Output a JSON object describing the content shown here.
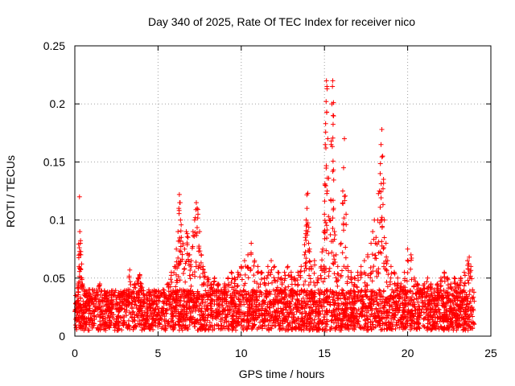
{
  "chart_data": {
    "type": "scatter",
    "title": "Day 340 of 2025, Rate Of TEC Index for receiver nico",
    "xlabel": "GPS time / hours",
    "ylabel": "ROTI / TECUs",
    "xlim": [
      0,
      25
    ],
    "ylim": [
      0,
      0.25
    ],
    "xticks": [
      0,
      5,
      10,
      15,
      20,
      25
    ],
    "xtick_labels": [
      "0",
      "5",
      "10",
      "15",
      "20",
      "25"
    ],
    "yticks": [
      0,
      0.05,
      0.1,
      0.15,
      0.2,
      0.25
    ],
    "ytick_labels": [
      "0",
      "0.05",
      "0.1",
      "0.15",
      "0.2",
      "0.25"
    ],
    "grid": true,
    "marker": "+",
    "series": [
      {
        "name": "ROTI",
        "color": "#ff0000",
        "points": [
          [
            0.05,
            0.035
          ],
          [
            0.1,
            0.025
          ],
          [
            0.15,
            0.03
          ],
          [
            0.2,
            0.045
          ],
          [
            0.25,
            0.06
          ],
          [
            0.28,
            0.12
          ],
          [
            0.3,
            0.09
          ],
          [
            0.33,
            0.08
          ],
          [
            0.36,
            0.07
          ],
          [
            0.4,
            0.05
          ],
          [
            0.45,
            0.045
          ],
          [
            0.5,
            0.03
          ],
          [
            0.6,
            0.025
          ],
          [
            0.7,
            0.03
          ],
          [
            0.8,
            0.035
          ],
          [
            0.9,
            0.04
          ],
          [
            1.0,
            0.03
          ],
          [
            1.2,
            0.025
          ],
          [
            1.5,
            0.045
          ],
          [
            1.8,
            0.03
          ],
          [
            2.0,
            0.025
          ],
          [
            2.3,
            0.03
          ],
          [
            2.6,
            0.035
          ],
          [
            2.9,
            0.03
          ],
          [
            3.2,
            0.04
          ],
          [
            3.3,
            0.057
          ],
          [
            3.6,
            0.045
          ],
          [
            3.8,
            0.05
          ],
          [
            3.9,
            0.053
          ],
          [
            4.0,
            0.045
          ],
          [
            4.2,
            0.035
          ],
          [
            4.5,
            0.03
          ],
          [
            4.8,
            0.03
          ],
          [
            5.0,
            0.035
          ],
          [
            5.3,
            0.04
          ],
          [
            5.6,
            0.045
          ],
          [
            5.8,
            0.055
          ],
          [
            6.0,
            0.06
          ],
          [
            6.1,
            0.075
          ],
          [
            6.2,
            0.09
          ],
          [
            6.25,
            0.11
          ],
          [
            6.28,
            0.122
          ],
          [
            6.3,
            0.115
          ],
          [
            6.35,
            0.1
          ],
          [
            6.4,
            0.085
          ],
          [
            6.5,
            0.08
          ],
          [
            6.6,
            0.075
          ],
          [
            6.7,
            0.09
          ],
          [
            6.8,
            0.085
          ],
          [
            6.9,
            0.07
          ],
          [
            7.0,
            0.065
          ],
          [
            7.1,
            0.09
          ],
          [
            7.2,
            0.1
          ],
          [
            7.3,
            0.115
          ],
          [
            7.35,
            0.11
          ],
          [
            7.4,
            0.105
          ],
          [
            7.5,
            0.09
          ],
          [
            7.6,
            0.07
          ],
          [
            7.7,
            0.06
          ],
          [
            7.8,
            0.055
          ],
          [
            8.0,
            0.05
          ],
          [
            8.2,
            0.045
          ],
          [
            8.4,
            0.05
          ],
          [
            8.6,
            0.045
          ],
          [
            8.8,
            0.04
          ],
          [
            9.0,
            0.045
          ],
          [
            9.2,
            0.05
          ],
          [
            9.4,
            0.055
          ],
          [
            9.6,
            0.05
          ],
          [
            9.8,
            0.055
          ],
          [
            10.0,
            0.06
          ],
          [
            10.2,
            0.065
          ],
          [
            10.4,
            0.07
          ],
          [
            10.6,
            0.08
          ],
          [
            10.8,
            0.065
          ],
          [
            11.0,
            0.06
          ],
          [
            11.2,
            0.055
          ],
          [
            11.4,
            0.05
          ],
          [
            11.6,
            0.06
          ],
          [
            11.8,
            0.065
          ],
          [
            12.0,
            0.06
          ],
          [
            12.2,
            0.055
          ],
          [
            12.4,
            0.05
          ],
          [
            12.6,
            0.055
          ],
          [
            12.8,
            0.06
          ],
          [
            13.0,
            0.055
          ],
          [
            13.2,
            0.05
          ],
          [
            13.4,
            0.055
          ],
          [
            13.6,
            0.06
          ],
          [
            13.8,
            0.07
          ],
          [
            13.85,
            0.085
          ],
          [
            13.9,
            0.1
          ],
          [
            13.95,
            0.11
          ],
          [
            14.0,
            0.123
          ],
          [
            14.05,
            0.08
          ],
          [
            14.1,
            0.075
          ],
          [
            14.2,
            0.06
          ],
          [
            14.4,
            0.065
          ],
          [
            14.6,
            0.05
          ],
          [
            14.8,
            0.06
          ],
          [
            14.9,
            0.075
          ],
          [
            15.0,
            0.105
          ],
          [
            15.03,
            0.13
          ],
          [
            15.05,
            0.165
          ],
          [
            15.07,
            0.183
          ],
          [
            15.1,
            0.202
          ],
          [
            15.12,
            0.22
          ],
          [
            15.15,
            0.215
          ],
          [
            15.2,
            0.17
          ],
          [
            15.3,
            0.1
          ],
          [
            15.4,
            0.165
          ],
          [
            15.45,
            0.2
          ],
          [
            15.48,
            0.215
          ],
          [
            15.5,
            0.22
          ],
          [
            15.52,
            0.19
          ],
          [
            15.55,
            0.11
          ],
          [
            15.6,
            0.09
          ],
          [
            15.7,
            0.07
          ],
          [
            15.8,
            0.06
          ],
          [
            16.0,
            0.08
          ],
          [
            16.1,
            0.125
          ],
          [
            16.15,
            0.145
          ],
          [
            16.2,
            0.17
          ],
          [
            16.3,
            0.105
          ],
          [
            16.4,
            0.06
          ],
          [
            16.6,
            0.055
          ],
          [
            16.8,
            0.05
          ],
          [
            17.0,
            0.055
          ],
          [
            17.2,
            0.06
          ],
          [
            17.4,
            0.065
          ],
          [
            17.6,
            0.07
          ],
          [
            17.8,
            0.08
          ],
          [
            17.9,
            0.09
          ],
          [
            18.0,
            0.1
          ],
          [
            18.1,
            0.085
          ],
          [
            18.2,
            0.1
          ],
          [
            18.3,
            0.125
          ],
          [
            18.35,
            0.14
          ],
          [
            18.4,
            0.165
          ],
          [
            18.45,
            0.178
          ],
          [
            18.5,
            0.155
          ],
          [
            18.55,
            0.135
          ],
          [
            18.6,
            0.1
          ],
          [
            18.7,
            0.08
          ],
          [
            18.8,
            0.065
          ],
          [
            19.0,
            0.06
          ],
          [
            19.2,
            0.055
          ],
          [
            19.4,
            0.05
          ],
          [
            19.6,
            0.045
          ],
          [
            19.8,
            0.055
          ],
          [
            20.0,
            0.075
          ],
          [
            20.2,
            0.07
          ],
          [
            20.4,
            0.05
          ],
          [
            20.6,
            0.045
          ],
          [
            20.8,
            0.04
          ],
          [
            21.0,
            0.045
          ],
          [
            21.2,
            0.05
          ],
          [
            21.4,
            0.045
          ],
          [
            21.6,
            0.04
          ],
          [
            21.8,
            0.045
          ],
          [
            22.0,
            0.05
          ],
          [
            22.2,
            0.055
          ],
          [
            22.4,
            0.05
          ],
          [
            22.6,
            0.045
          ],
          [
            22.8,
            0.05
          ],
          [
            23.0,
            0.045
          ],
          [
            23.2,
            0.05
          ],
          [
            23.4,
            0.055
          ],
          [
            23.6,
            0.065
          ],
          [
            23.7,
            0.068
          ],
          [
            23.8,
            0.06
          ],
          [
            23.9,
            0.04
          ],
          [
            24.0,
            0.03
          ]
        ],
        "baseline_band": {
          "description": "dense scatter of points throughout the day",
          "x_range": [
            0,
            24
          ],
          "y_min": 0.005,
          "y_max": 0.04
        }
      }
    ]
  }
}
